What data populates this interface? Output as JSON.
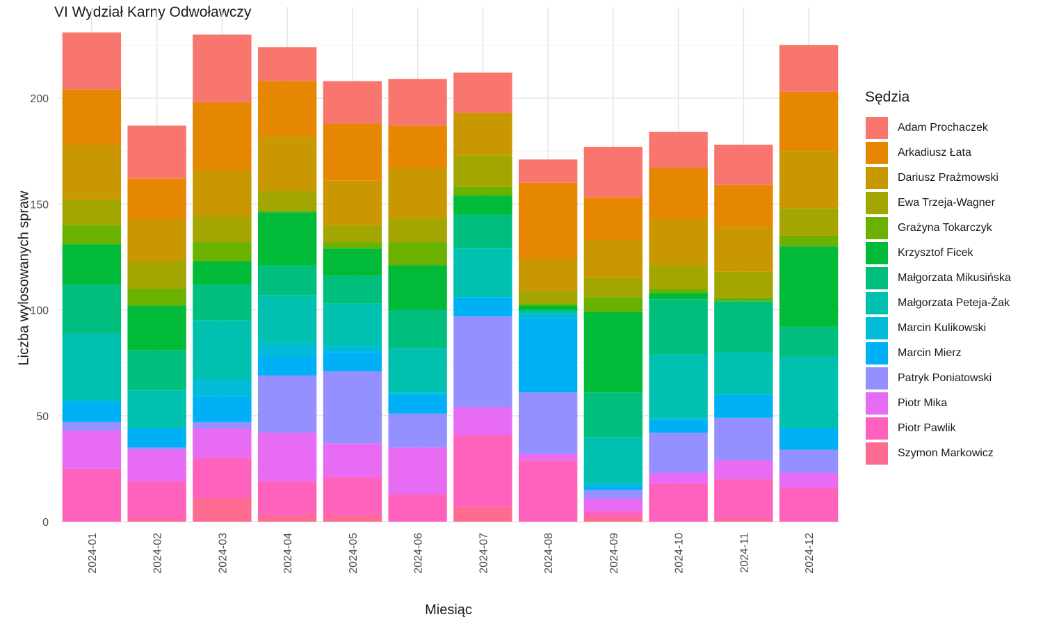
{
  "chart_data": {
    "type": "bar",
    "stacked": true,
    "title": "VI Wydział Karny Odwoławczy",
    "xlabel": "Miesiąc",
    "ylabel": "Liczba wylosowanych spraw",
    "legend_title": "Sędzia",
    "legend_position": "right",
    "ylim": [
      0,
      232
    ],
    "yticks": [
      0,
      50,
      100,
      150,
      200
    ],
    "grid": true,
    "categories": [
      "2024-01",
      "2024-02",
      "2024-03",
      "2024-04",
      "2024-05",
      "2024-06",
      "2024-07",
      "2024-08",
      "2024-09",
      "2024-10",
      "2024-11",
      "2024-12"
    ],
    "series": [
      {
        "name": "Adam Prochaczek",
        "color": "#F8766D",
        "values": [
          27,
          25,
          32,
          16,
          20,
          22,
          19,
          11,
          24,
          17,
          19,
          22
        ]
      },
      {
        "name": "Arkadiusz Łata",
        "color": "#E58700",
        "values": [
          26,
          19,
          32,
          26,
          27,
          20,
          0,
          36,
          20,
          24,
          20,
          28
        ]
      },
      {
        "name": "Dariusz Prażmowski",
        "color": "#C99800",
        "values": [
          26,
          20,
          22,
          26,
          21,
          24,
          20,
          15,
          18,
          22,
          21,
          27
        ]
      },
      {
        "name": "Ewa Trzeja-Wagner",
        "color": "#A3A500",
        "values": [
          12,
          13,
          12,
          9,
          8,
          11,
          15,
          6,
          9,
          11,
          12,
          13
        ]
      },
      {
        "name": "Grażyna Tokarczyk",
        "color": "#6BB100",
        "values": [
          9,
          8,
          9,
          1,
          3,
          11,
          4,
          1,
          7,
          2,
          2,
          5
        ]
      },
      {
        "name": "Krzysztof Ficek",
        "color": "#00BA38",
        "values": [
          19,
          21,
          11,
          25,
          13,
          21,
          9,
          2,
          38,
          3,
          0,
          38
        ]
      },
      {
        "name": "Małgorzata Mikusińska",
        "color": "#00BF7D",
        "values": [
          23,
          19,
          17,
          14,
          13,
          18,
          16,
          1,
          21,
          26,
          24,
          14
        ]
      },
      {
        "name": "Małgorzata Peteja-Żak",
        "color": "#00C0AF",
        "values": [
          32,
          18,
          28,
          23,
          20,
          21,
          23,
          1,
          22,
          30,
          20,
          34
        ]
      },
      {
        "name": "Marcin Kulikowski",
        "color": "#00BCD8",
        "values": [
          0,
          0,
          8,
          6,
          3,
          1,
          0,
          2,
          1,
          1,
          0,
          0
        ]
      },
      {
        "name": "Marcin Mierz",
        "color": "#00B0F6",
        "values": [
          10,
          9,
          12,
          9,
          9,
          9,
          9,
          35,
          2,
          6,
          11,
          10
        ]
      },
      {
        "name": "Patryk Poniatowski",
        "color": "#9590FF",
        "values": [
          4,
          1,
          3,
          27,
          34,
          16,
          43,
          29,
          4,
          19,
          20,
          11
        ]
      },
      {
        "name": "Piotr Mika",
        "color": "#E76BF3",
        "values": [
          18,
          15,
          14,
          23,
          16,
          22,
          13,
          3,
          6,
          5,
          9,
          7
        ]
      },
      {
        "name": "Piotr Pawlik",
        "color": "#FF62BC",
        "values": [
          25,
          18,
          19,
          16,
          18,
          13,
          34,
          29,
          3,
          18,
          19,
          16
        ]
      },
      {
        "name": "Szymon Markowicz",
        "color": "#FF6C91",
        "values": [
          0,
          1,
          11,
          3,
          3,
          0,
          7,
          0,
          2,
          0,
          1,
          0
        ]
      }
    ]
  }
}
